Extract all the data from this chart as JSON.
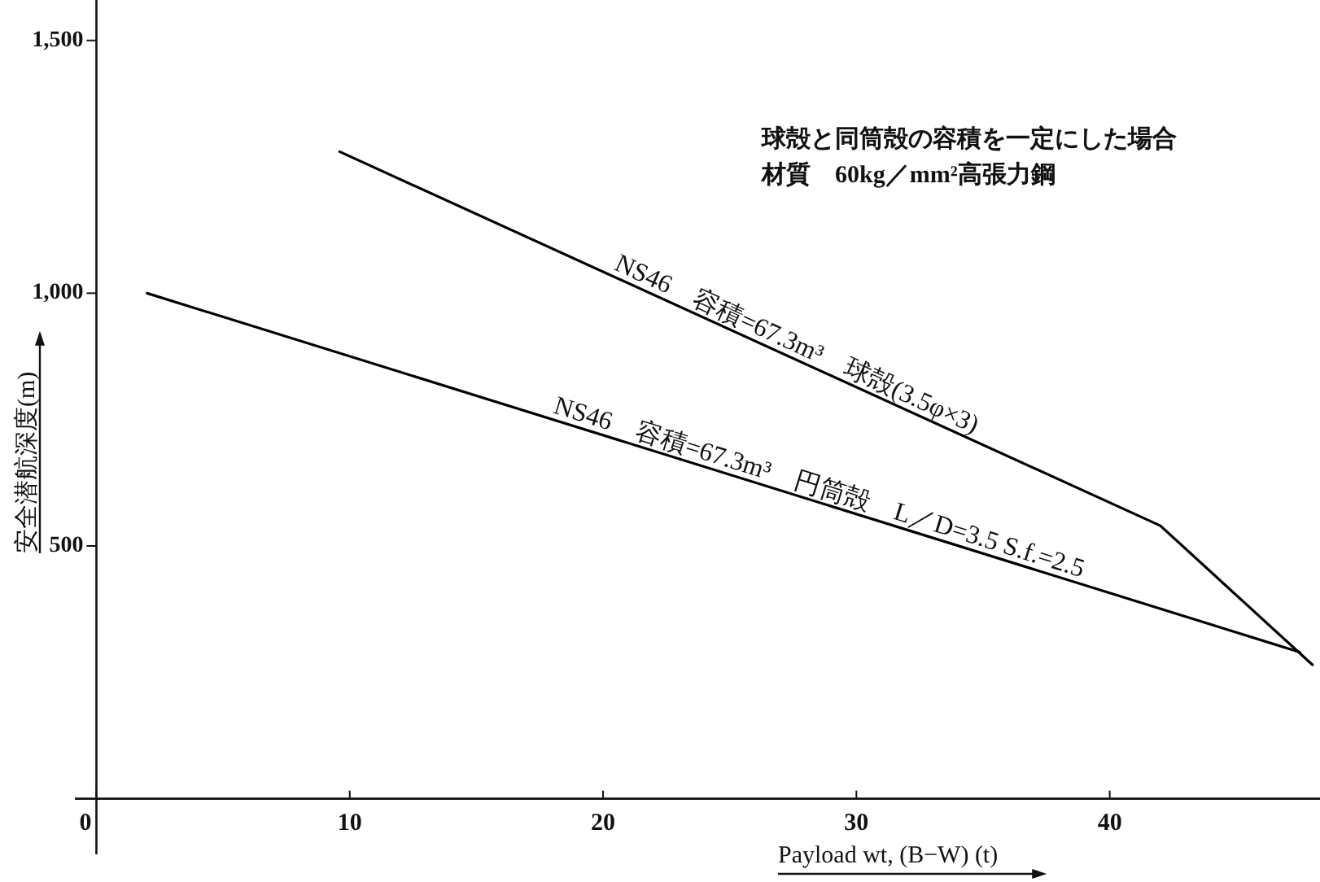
{
  "chart_data": {
    "type": "line",
    "xlabel": "Payload wt, (B−W) (t)",
    "ylabel": "安全潜航深度(m)",
    "annotations": [
      "球殻と同筒殻の容積を一定にした場合",
      "材質　60kg／mm²高張力鋼"
    ],
    "xlim": [
      -0.85,
      48.3
    ],
    "ylim": [
      -110,
      1580
    ],
    "xticks": [
      0,
      10,
      20,
      30,
      40
    ],
    "yticks": [
      500,
      {
        "value": 1000,
        "label": "1,000"
      },
      {
        "value": 1500,
        "label": "1,500"
      }
    ],
    "series": [
      {
        "name": "NS46　容積=67.3m³　球殻(3.5φ×3)",
        "color": "#000000",
        "x": [
          9.6,
          42,
          48
        ],
        "values": [
          1280,
          540,
          265
        ]
      },
      {
        "name": "NS46　容積=67.3m³　円筒殻　L／D=3.5 S.f.=2.5",
        "color": "#000000",
        "x": [
          2,
          47.5
        ],
        "values": [
          1000,
          290
        ]
      }
    ]
  }
}
